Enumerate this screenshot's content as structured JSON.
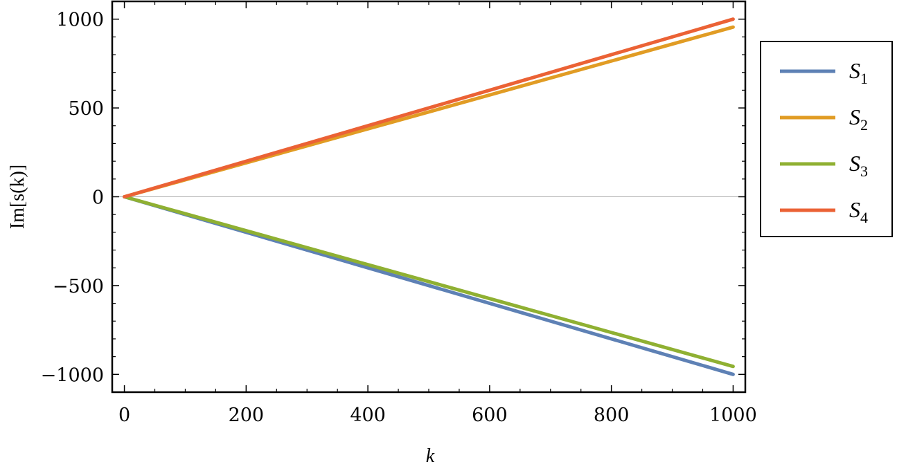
{
  "chart_data": {
    "type": "line",
    "xlabel": "k",
    "ylabel": "Im[s(k)]",
    "xlim": [
      -20,
      1020
    ],
    "ylim": [
      -1100,
      1100
    ],
    "x_ticks": [
      0,
      200,
      400,
      600,
      800,
      1000
    ],
    "x_tick_labels": [
      "0",
      "200",
      "400",
      "600",
      "800",
      "1000"
    ],
    "y_ticks": [
      -1000,
      -500,
      0,
      500,
      1000
    ],
    "y_tick_labels": [
      "−1000",
      "−500",
      "0",
      "500",
      "1000"
    ],
    "grid": false,
    "zero_line": true,
    "legend_position": "right",
    "series": [
      {
        "name": "S",
        "subscript": "1",
        "color": "#5e81b5",
        "x": [
          0,
          1000
        ],
        "y": [
          0,
          -1000
        ]
      },
      {
        "name": "S",
        "subscript": "2",
        "color": "#e19c24",
        "x": [
          0,
          1000
        ],
        "y": [
          0,
          955
        ]
      },
      {
        "name": "S",
        "subscript": "3",
        "color": "#8fb032",
        "x": [
          0,
          1000
        ],
        "y": [
          0,
          -955
        ]
      },
      {
        "name": "S",
        "subscript": "4",
        "color": "#eb6235",
        "x": [
          0,
          1000
        ],
        "y": [
          0,
          1000
        ]
      }
    ]
  }
}
